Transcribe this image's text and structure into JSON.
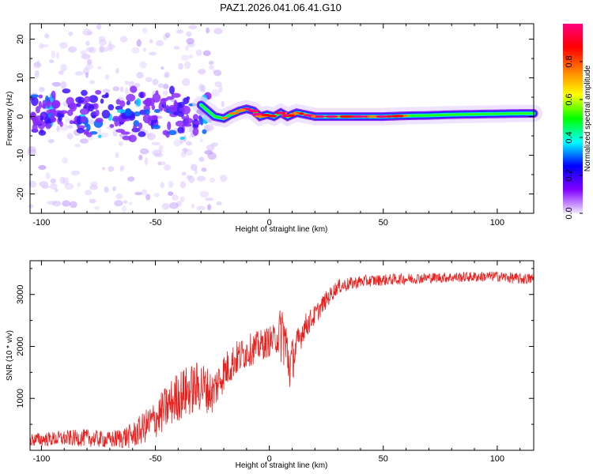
{
  "title": "PAZ1.2026.041.06.41.G10",
  "chart_data": [
    {
      "type": "heatmap",
      "name": "spectrogram",
      "xlabel": "Height of straight line (km)",
      "ylabel": "Frequency (Hz)",
      "xlim": [
        -105,
        116
      ],
      "ylim": [
        -25,
        24
      ],
      "xticks": [
        -100,
        -50,
        0,
        50,
        100
      ],
      "yticks": [
        -20,
        -10,
        0,
        10,
        20
      ],
      "ridge": {
        "x": [
          -30,
          -27,
          -24,
          -20,
          -17,
          -13,
          -10,
          -7,
          -4,
          -1,
          2,
          5,
          8,
          12,
          16,
          20,
          30,
          40,
          50,
          60,
          70,
          80,
          90,
          100,
          110,
          116
        ],
        "freq": [
          3,
          1.5,
          0,
          -0.5,
          0.5,
          1.5,
          2,
          1.5,
          0,
          0.5,
          0,
          1,
          0,
          1,
          0.5,
          0,
          0,
          0,
          0,
          0.2,
          0.3,
          0.5,
          0.6,
          0.7,
          0.8,
          0.8
        ]
      },
      "colorbar": {
        "label": "Normalized spectral amplitude",
        "range": [
          0,
          1
        ],
        "ticks": [
          "0.0",
          "0.2",
          "0.4",
          "0.6",
          "0.8"
        ],
        "colormap": [
          "#f2e8ff",
          "#8000ff",
          "#0000ff",
          "#00ffff",
          "#00ff00",
          "#ffff00",
          "#ff8000",
          "#ff0000",
          "#ff0080"
        ]
      }
    },
    {
      "type": "line",
      "name": "snr",
      "xlabel": "Height of straight line (km)",
      "ylabel": "SNR (10 * v/v)",
      "xlim": [
        -105,
        116
      ],
      "ylim": [
        0,
        3650
      ],
      "xticks": [
        -100,
        -50,
        0,
        50,
        100
      ],
      "yticks": [
        1000,
        2000,
        3000
      ],
      "color": "#e8211f",
      "x": [
        -105,
        -90,
        -80,
        -70,
        -60,
        -50,
        -40,
        -30,
        -25,
        -20,
        -15,
        -10,
        -5,
        0,
        3,
        6,
        9,
        12,
        15,
        20,
        25,
        30,
        40,
        50,
        60,
        70,
        80,
        90,
        100,
        110,
        116
      ],
      "y": [
        200,
        230,
        240,
        200,
        280,
        600,
        1050,
        1250,
        1100,
        1500,
        1750,
        1900,
        2000,
        2100,
        2150,
        2300,
        1600,
        2000,
        2350,
        2600,
        2900,
        3150,
        3250,
        3280,
        3300,
        3320,
        3330,
        3340,
        3350,
        3300,
        3300
      ],
      "noise": [
        130,
        150,
        170,
        160,
        250,
        380,
        500,
        500,
        420,
        380,
        350,
        320,
        300,
        300,
        280,
        700,
        500,
        320,
        260,
        200,
        170,
        140,
        120,
        110,
        110,
        100,
        100,
        100,
        100,
        110,
        110
      ]
    }
  ]
}
